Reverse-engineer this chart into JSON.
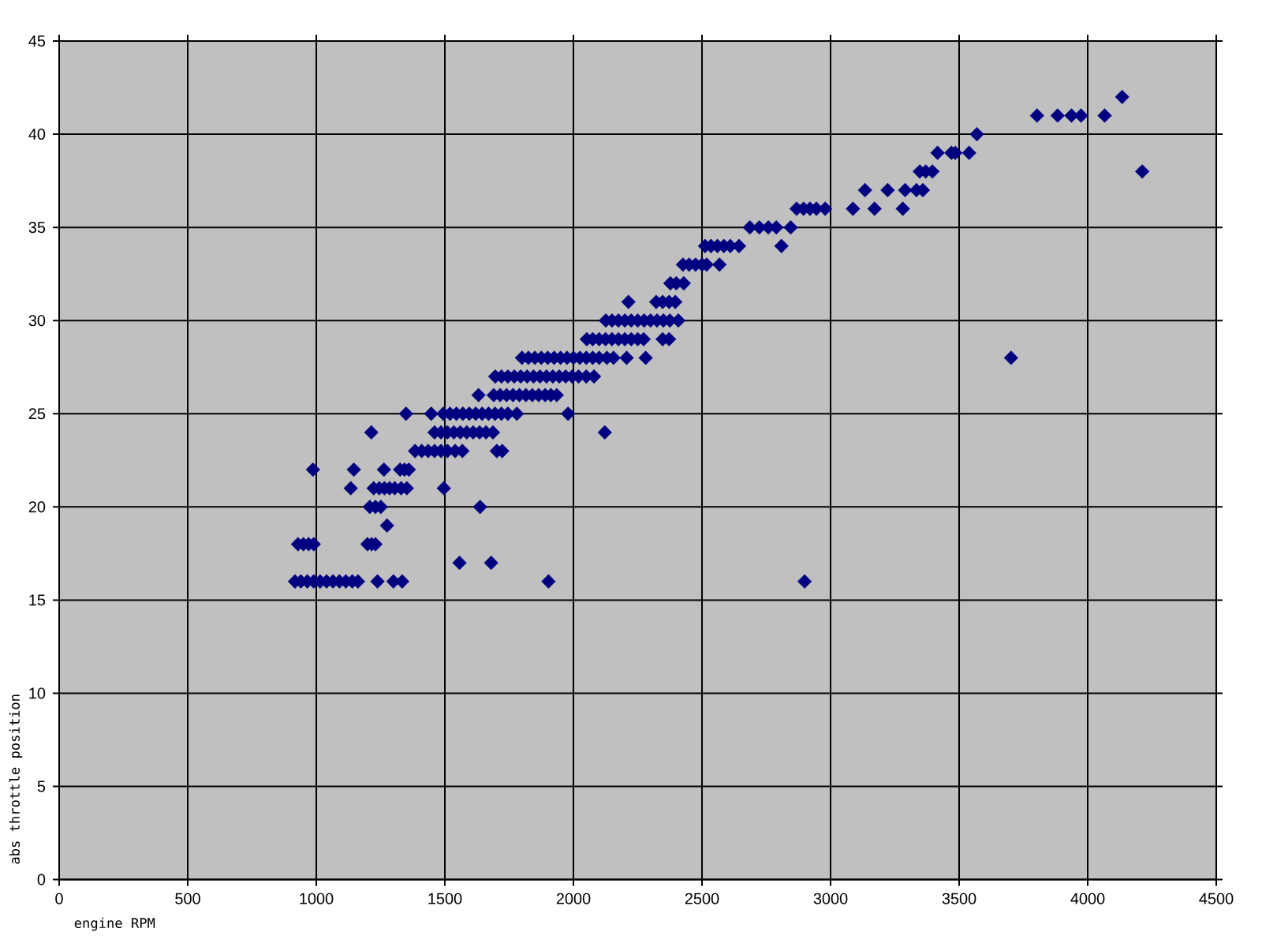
{
  "chart_data": {
    "type": "scatter",
    "xlabel": "engine RPM",
    "ylabel": "abs throttle position",
    "xlim": [
      0,
      4500
    ],
    "ylim": [
      0,
      45
    ],
    "xticks": [
      0,
      500,
      1000,
      1500,
      2000,
      2500,
      3000,
      3500,
      4000,
      4500
    ],
    "yticks": [
      0,
      5,
      10,
      15,
      20,
      25,
      30,
      35,
      40,
      45
    ],
    "grid": true,
    "marker": "diamond",
    "series": [
      {
        "color": "#000080",
        "x": [
          917,
          940,
          965,
          990,
          1015,
          1040,
          1065,
          1090,
          1115,
          1140,
          1162,
          1238,
          1300,
          1334,
          1903,
          2899,
          1557,
          1680,
          929,
          950,
          970,
          990,
          1199,
          1215,
          1230,
          1275,
          1208,
          1230,
          1251,
          1637,
          1134,
          1223,
          1245,
          1265,
          1285,
          1305,
          1330,
          1352,
          1496,
          987,
          1146,
          1263,
          1326,
          1343,
          1360,
          1384,
          1410,
          1435,
          1460,
          1485,
          1510,
          1540,
          1568,
          1702,
          1723,
          1214,
          1460,
          1485,
          1510,
          1535,
          1560,
          1585,
          1610,
          1635,
          1660,
          1687,
          2122,
          1349,
          1447,
          1494,
          1520,
          1545,
          1570,
          1595,
          1620,
          1645,
          1670,
          1695,
          1720,
          1745,
          1780,
          1979,
          1631,
          1690,
          1715,
          1740,
          1765,
          1790,
          1815,
          1840,
          1865,
          1890,
          1912,
          1935,
          1696,
          1720,
          1745,
          1770,
          1795,
          1820,
          1845,
          1870,
          1895,
          1920,
          1945,
          1970,
          1995,
          2020,
          2050,
          2080,
          1800,
          1825,
          1850,
          1875,
          1900,
          1925,
          1950,
          1975,
          2000,
          2025,
          2050,
          2075,
          2100,
          2130,
          2156,
          2207,
          2281,
          3702,
          2052,
          2075,
          2100,
          2125,
          2150,
          2175,
          2200,
          2225,
          2250,
          2273,
          2347,
          2372,
          2126,
          2150,
          2175,
          2200,
          2225,
          2250,
          2275,
          2300,
          2325,
          2350,
          2375,
          2408,
          2214,
          2322,
          2347,
          2372,
          2396,
          2377,
          2400,
          2429,
          2426,
          2450,
          2475,
          2500,
          2518,
          2568,
          2512,
          2535,
          2560,
          2585,
          2610,
          2644,
          2809,
          2686,
          2723,
          2758,
          2789,
          2845,
          2868,
          2895,
          2920,
          2945,
          2979,
          3087,
          3171,
          3281,
          3134,
          3222,
          3290,
          3334,
          3359,
          3347,
          3370,
          3396,
          4212,
          3416,
          3470,
          3485,
          3539,
          3569,
          3803,
          3883,
          3937,
          3974,
          4066,
          4134
        ],
        "values": [
          16,
          16,
          16,
          16,
          16,
          16,
          16,
          16,
          16,
          16,
          16,
          16,
          16,
          16,
          16,
          16,
          17,
          17,
          18,
          18,
          18,
          18,
          18,
          18,
          18,
          19,
          20,
          20,
          20,
          20,
          21,
          21,
          21,
          21,
          21,
          21,
          21,
          21,
          21,
          22,
          22,
          22,
          22,
          22,
          22,
          23,
          23,
          23,
          23,
          23,
          23,
          23,
          23,
          23,
          23,
          24,
          24,
          24,
          24,
          24,
          24,
          24,
          24,
          24,
          24,
          24,
          24,
          25,
          25,
          25,
          25,
          25,
          25,
          25,
          25,
          25,
          25,
          25,
          25,
          25,
          25,
          25,
          26,
          26,
          26,
          26,
          26,
          26,
          26,
          26,
          26,
          26,
          26,
          26,
          27,
          27,
          27,
          27,
          27,
          27,
          27,
          27,
          27,
          27,
          27,
          27,
          27,
          27,
          27,
          27,
          28,
          28,
          28,
          28,
          28,
          28,
          28,
          28,
          28,
          28,
          28,
          28,
          28,
          28,
          28,
          28,
          28,
          28,
          29,
          29,
          29,
          29,
          29,
          29,
          29,
          29,
          29,
          29,
          29,
          29,
          30,
          30,
          30,
          30,
          30,
          30,
          30,
          30,
          30,
          30,
          30,
          30,
          31,
          31,
          31,
          31,
          31,
          32,
          32,
          32,
          33,
          33,
          33,
          33,
          33,
          33,
          34,
          34,
          34,
          34,
          34,
          34,
          34,
          35,
          35,
          35,
          35,
          35,
          36,
          36,
          36,
          36,
          36,
          36,
          36,
          36,
          37,
          37,
          37,
          37,
          37,
          38,
          38,
          38,
          38,
          39,
          39,
          39,
          39,
          40,
          41,
          41,
          41,
          41,
          41,
          42
        ]
      }
    ]
  }
}
